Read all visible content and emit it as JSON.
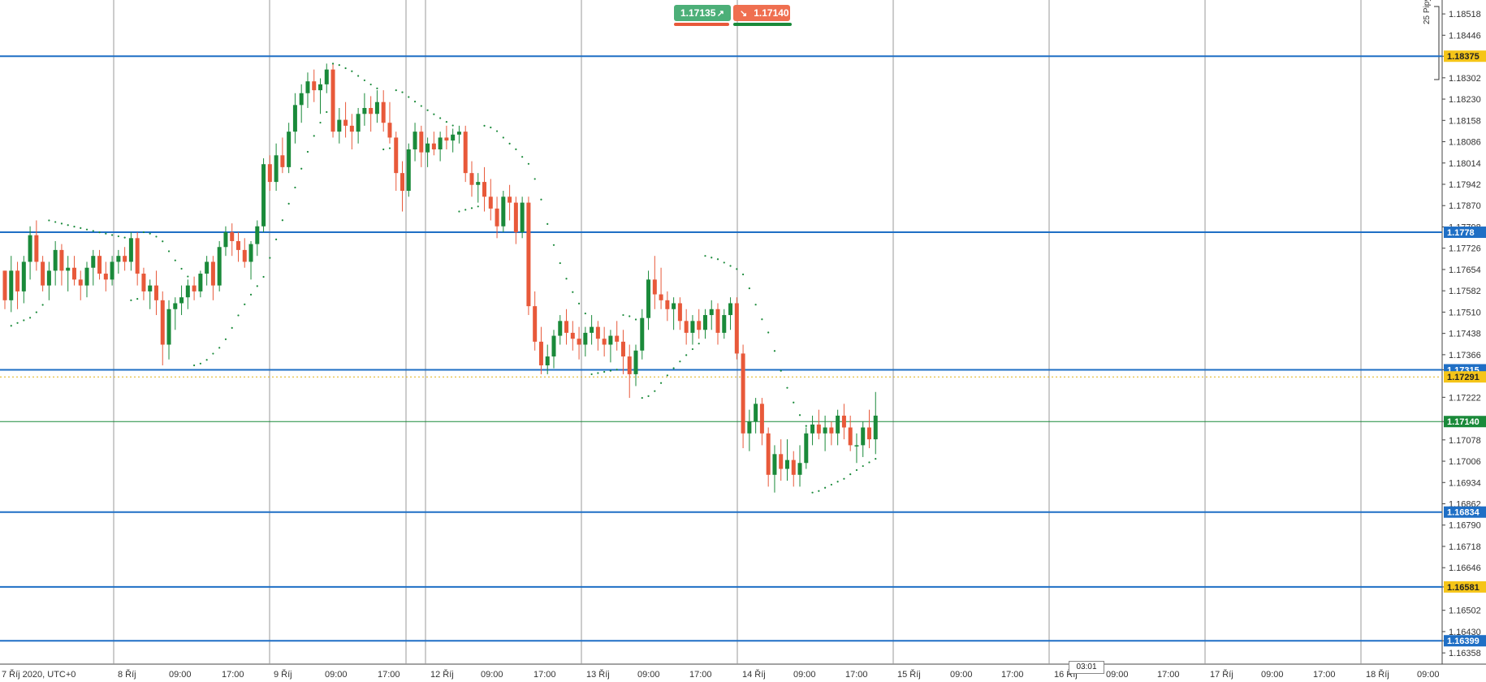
{
  "trade_panel": {
    "buy_price": "1.17135",
    "sell_price": "1.17140",
    "buy_arrow": "↗",
    "sell_arrow": "↘"
  },
  "pips_label": "25 Pipy",
  "current_time_box": "03:01",
  "chart_data": {
    "type": "candlestick",
    "instrument_timeframe_note": "",
    "price_range": [
      1.163,
      1.1855
    ],
    "y_ticks": [
      "1.18518",
      "1.18446",
      "1.18375",
      "1.18302",
      "1.18230",
      "1.18158",
      "1.18086",
      "1.18014",
      "1.17942",
      "1.17870",
      "1.17798",
      "1.17726",
      "1.17654",
      "1.17582",
      "1.17510",
      "1.17438",
      "1.17366",
      "1.17315",
      "1.17222",
      "1.17140",
      "1.17078",
      "1.17006",
      "1.16934",
      "1.16862",
      "1.16790",
      "1.16718",
      "1.16646",
      "1.16581",
      "1.16502",
      "1.16430",
      "1.16399",
      "1.16358"
    ],
    "x_labels": [
      "7 Říj 2020, UTC+0",
      "8 Říj",
      "09:00",
      "17:00",
      "9 Říj",
      "09:00",
      "17:00",
      "12 Říj",
      "09:00",
      "17:00",
      "13 Říj",
      "09:00",
      "17:00",
      "14 Říj",
      "09:00",
      "17:00",
      "15 Říj",
      "09:00",
      "17:00",
      "16 Říj",
      "09:00",
      "17:00",
      "17 Říj",
      "09:00",
      "17:00",
      "18 Říj",
      "09:00"
    ],
    "horizontal_levels": [
      {
        "price": 1.18375,
        "label": "1.18375",
        "tag_color": "#f5c518",
        "text_color": "#222"
      },
      {
        "price": 1.1778,
        "label": "1.1778",
        "tag_color": "#1f6fc5",
        "text_color": "#fff"
      },
      {
        "price": 1.17315,
        "label": "1.17315",
        "tag_color": "#1f6fc5",
        "text_color": "#fff"
      },
      {
        "price": 1.16834,
        "label": "1.16834",
        "tag_color": "#1f6fc5",
        "text_color": "#fff"
      },
      {
        "price": 1.16581,
        "label": "1.16581",
        "tag_color": "#f5c518",
        "text_color": "#222"
      },
      {
        "price": 1.16399,
        "label": "1.16399",
        "tag_color": "#1f6fc5",
        "text_color": "#fff"
      }
    ],
    "current_price": {
      "price": 1.1714,
      "label": "1.17140",
      "tag_color": "#1a8a3a",
      "text_color": "#fff"
    },
    "dotted_level": {
      "price": 1.17291,
      "label": "1.17291",
      "tag_color": "#f5c518",
      "text_color": "#222"
    },
    "candles": [
      [
        1.1765,
        1.1765,
        1.1752,
        1.1755
      ],
      [
        1.1755,
        1.177,
        1.1751,
        1.1765
      ],
      [
        1.1765,
        1.1768,
        1.1752,
        1.1758
      ],
      [
        1.1758,
        1.177,
        1.1754,
        1.1768
      ],
      [
        1.1768,
        1.178,
        1.1762,
        1.1777
      ],
      [
        1.1777,
        1.1782,
        1.1765,
        1.1768
      ],
      [
        1.1768,
        1.177,
        1.1758,
        1.176
      ],
      [
        1.176,
        1.1768,
        1.1755,
        1.1765
      ],
      [
        1.1765,
        1.1775,
        1.176,
        1.1772
      ],
      [
        1.1772,
        1.1774,
        1.176,
        1.1765
      ],
      [
        1.1765,
        1.177,
        1.1758,
        1.1766
      ],
      [
        1.1766,
        1.177,
        1.176,
        1.1762
      ],
      [
        1.1762,
        1.1765,
        1.1755,
        1.176
      ],
      [
        1.176,
        1.1768,
        1.1756,
        1.1766
      ],
      [
        1.1766,
        1.1772,
        1.176,
        1.177
      ],
      [
        1.177,
        1.1772,
        1.1762,
        1.1764
      ],
      [
        1.1764,
        1.1768,
        1.1758,
        1.1762
      ],
      [
        1.1762,
        1.177,
        1.176,
        1.1768
      ],
      [
        1.1768,
        1.1772,
        1.1764,
        1.177
      ],
      [
        1.177,
        1.1773,
        1.1765,
        1.1768
      ],
      [
        1.1768,
        1.1778,
        1.1765,
        1.1776
      ],
      [
        1.1776,
        1.1778,
        1.176,
        1.1764
      ],
      [
        1.1764,
        1.1766,
        1.1755,
        1.1758
      ],
      [
        1.1758,
        1.1762,
        1.1752,
        1.176
      ],
      [
        1.176,
        1.1765,
        1.175,
        1.1755
      ],
      [
        1.1755,
        1.1758,
        1.1733,
        1.174
      ],
      [
        1.174,
        1.1755,
        1.1735,
        1.1752
      ],
      [
        1.1752,
        1.1756,
        1.1745,
        1.1754
      ],
      [
        1.1754,
        1.176,
        1.175,
        1.1756
      ],
      [
        1.1756,
        1.1762,
        1.1752,
        1.176
      ],
      [
        1.176,
        1.1763,
        1.1755,
        1.1758
      ],
      [
        1.1758,
        1.1765,
        1.1756,
        1.1764
      ],
      [
        1.1764,
        1.177,
        1.176,
        1.1768
      ],
      [
        1.1768,
        1.177,
        1.1755,
        1.176
      ],
      [
        1.176,
        1.1775,
        1.1758,
        1.1773
      ],
      [
        1.1773,
        1.178,
        1.177,
        1.1778
      ],
      [
        1.1778,
        1.1781,
        1.177,
        1.1775
      ],
      [
        1.1775,
        1.1778,
        1.1768,
        1.1772
      ],
      [
        1.1772,
        1.1776,
        1.1766,
        1.1768
      ],
      [
        1.1768,
        1.1775,
        1.1762,
        1.1774
      ],
      [
        1.1774,
        1.1782,
        1.177,
        1.178
      ],
      [
        1.178,
        1.1803,
        1.1778,
        1.1801
      ],
      [
        1.1801,
        1.1804,
        1.1792,
        1.1795
      ],
      [
        1.1795,
        1.1808,
        1.1792,
        1.1804
      ],
      [
        1.1804,
        1.181,
        1.1798,
        1.18
      ],
      [
        1.18,
        1.1815,
        1.1798,
        1.1812
      ],
      [
        1.1812,
        1.1825,
        1.1808,
        1.1821
      ],
      [
        1.1821,
        1.1828,
        1.1815,
        1.1825
      ],
      [
        1.1825,
        1.1832,
        1.182,
        1.1829
      ],
      [
        1.1829,
        1.1833,
        1.1822,
        1.1826
      ],
      [
        1.1826,
        1.183,
        1.1818,
        1.1828
      ],
      [
        1.1828,
        1.1835,
        1.1825,
        1.1833
      ],
      [
        1.1833,
        1.1835,
        1.181,
        1.1812
      ],
      [
        1.1812,
        1.182,
        1.1808,
        1.1816
      ],
      [
        1.1816,
        1.1822,
        1.181,
        1.1814
      ],
      [
        1.1814,
        1.1818,
        1.1806,
        1.1812
      ],
      [
        1.1812,
        1.182,
        1.1808,
        1.1818
      ],
      [
        1.1818,
        1.1825,
        1.1814,
        1.182
      ],
      [
        1.182,
        1.1824,
        1.1812,
        1.1818
      ],
      [
        1.1818,
        1.1826,
        1.1815,
        1.1822
      ],
      [
        1.1822,
        1.1826,
        1.1812,
        1.1815
      ],
      [
        1.1815,
        1.1822,
        1.1808,
        1.181
      ],
      [
        1.181,
        1.1812,
        1.1792,
        1.1798
      ],
      [
        1.1798,
        1.1802,
        1.1785,
        1.1792
      ],
      [
        1.1792,
        1.1808,
        1.179,
        1.1806
      ],
      [
        1.1806,
        1.1815,
        1.1802,
        1.1812
      ],
      [
        1.1812,
        1.1814,
        1.18,
        1.1805
      ],
      [
        1.1805,
        1.181,
        1.18,
        1.1808
      ],
      [
        1.1808,
        1.1812,
        1.1804,
        1.1806
      ],
      [
        1.1806,
        1.1812,
        1.1802,
        1.181
      ],
      [
        1.181,
        1.1814,
        1.1806,
        1.1809
      ],
      [
        1.1809,
        1.1813,
        1.1805,
        1.1811
      ],
      [
        1.1811,
        1.1814,
        1.1808,
        1.1812
      ],
      [
        1.1812,
        1.1814,
        1.1795,
        1.1798
      ],
      [
        1.1798,
        1.1802,
        1.179,
        1.1794
      ],
      [
        1.1794,
        1.1798,
        1.1788,
        1.1795
      ],
      [
        1.1795,
        1.18,
        1.1785,
        1.179
      ],
      [
        1.179,
        1.1796,
        1.1782,
        1.1786
      ],
      [
        1.1786,
        1.179,
        1.1776,
        1.178
      ],
      [
        1.178,
        1.1792,
        1.1778,
        1.179
      ],
      [
        1.179,
        1.1794,
        1.1782,
        1.1788
      ],
      [
        1.1788,
        1.179,
        1.1774,
        1.1778
      ],
      [
        1.1778,
        1.179,
        1.1776,
        1.1788
      ],
      [
        1.1788,
        1.179,
        1.175,
        1.1753
      ],
      [
        1.1753,
        1.1758,
        1.1738,
        1.1741
      ],
      [
        1.1741,
        1.1746,
        1.173,
        1.1733
      ],
      [
        1.1733,
        1.174,
        1.173,
        1.1736
      ],
      [
        1.1736,
        1.1745,
        1.1732,
        1.1743
      ],
      [
        1.1743,
        1.175,
        1.174,
        1.1748
      ],
      [
        1.1748,
        1.1752,
        1.174,
        1.1744
      ],
      [
        1.1744,
        1.1748,
        1.1738,
        1.1742
      ],
      [
        1.1742,
        1.1746,
        1.1735,
        1.174
      ],
      [
        1.174,
        1.1746,
        1.1736,
        1.1744
      ],
      [
        1.1744,
        1.175,
        1.174,
        1.1746
      ],
      [
        1.1746,
        1.1748,
        1.1738,
        1.1742
      ],
      [
        1.1742,
        1.1746,
        1.1736,
        1.174
      ],
      [
        1.174,
        1.1745,
        1.1734,
        1.1743
      ],
      [
        1.1743,
        1.1748,
        1.1738,
        1.1741
      ],
      [
        1.1741,
        1.1745,
        1.173,
        1.1736
      ],
      [
        1.1736,
        1.174,
        1.1722,
        1.173
      ],
      [
        1.173,
        1.174,
        1.1726,
        1.1738
      ],
      [
        1.1738,
        1.1752,
        1.1735,
        1.1749
      ],
      [
        1.1749,
        1.1765,
        1.1745,
        1.1762
      ],
      [
        1.1762,
        1.177,
        1.1752,
        1.1757
      ],
      [
        1.1757,
        1.1766,
        1.1752,
        1.1755
      ],
      [
        1.1755,
        1.1758,
        1.1748,
        1.1752
      ],
      [
        1.1752,
        1.1756,
        1.1745,
        1.1754
      ],
      [
        1.1754,
        1.1756,
        1.1745,
        1.1748
      ],
      [
        1.1748,
        1.1752,
        1.174,
        1.1744
      ],
      [
        1.1744,
        1.175,
        1.174,
        1.1748
      ],
      [
        1.1748,
        1.1752,
        1.1742,
        1.1745
      ],
      [
        1.1745,
        1.1752,
        1.1742,
        1.175
      ],
      [
        1.175,
        1.1755,
        1.1745,
        1.1752
      ],
      [
        1.1752,
        1.1754,
        1.174,
        1.1744
      ],
      [
        1.1744,
        1.1752,
        1.1742,
        1.175
      ],
      [
        1.175,
        1.1756,
        1.1745,
        1.1754
      ],
      [
        1.1754,
        1.1756,
        1.1735,
        1.1737
      ],
      [
        1.1737,
        1.174,
        1.1705,
        1.171
      ],
      [
        1.171,
        1.1718,
        1.1704,
        1.1714
      ],
      [
        1.1714,
        1.1722,
        1.171,
        1.172
      ],
      [
        1.172,
        1.1722,
        1.1706,
        1.171
      ],
      [
        1.171,
        1.1712,
        1.1692,
        1.1696
      ],
      [
        1.1696,
        1.1706,
        1.169,
        1.1703
      ],
      [
        1.1703,
        1.1708,
        1.1694,
        1.1698
      ],
      [
        1.1698,
        1.1708,
        1.1694,
        1.1701
      ],
      [
        1.1701,
        1.1704,
        1.1692,
        1.1696
      ],
      [
        1.1696,
        1.1706,
        1.1692,
        1.17
      ],
      [
        1.17,
        1.1712,
        1.1698,
        1.171
      ],
      [
        1.171,
        1.1716,
        1.1706,
        1.1713
      ],
      [
        1.1713,
        1.1718,
        1.1708,
        1.171
      ],
      [
        1.171,
        1.1716,
        1.1704,
        1.1712
      ],
      [
        1.1712,
        1.1714,
        1.1706,
        1.171
      ],
      [
        1.171,
        1.1718,
        1.1706,
        1.1716
      ],
      [
        1.1716,
        1.172,
        1.1708,
        1.1712
      ],
      [
        1.1712,
        1.1716,
        1.1704,
        1.1706
      ],
      [
        1.1706,
        1.171,
        1.17,
        1.1706
      ],
      [
        1.1706,
        1.1714,
        1.1702,
        1.1712
      ],
      [
        1.1712,
        1.1718,
        1.1705,
        1.1708
      ],
      [
        1.1708,
        1.1724,
        1.1703,
        1.1716
      ]
    ]
  }
}
